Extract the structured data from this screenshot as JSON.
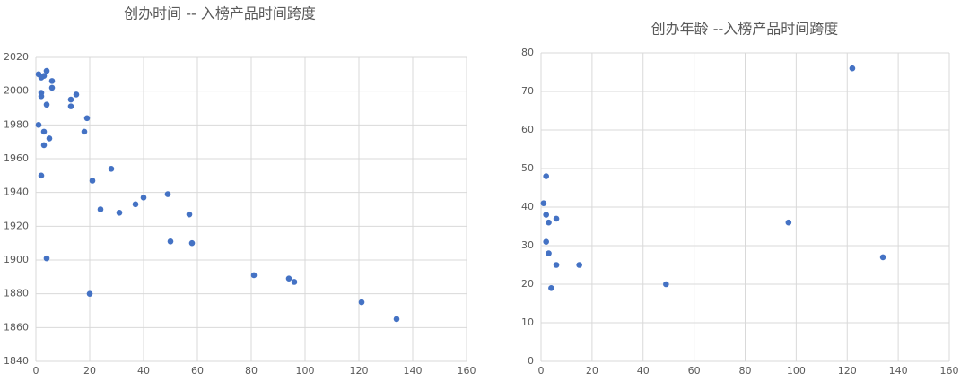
{
  "chart_data": [
    {
      "type": "scatter",
      "title": "创办时间 -- 入榜产品时间跨度",
      "color": "#4472c4",
      "grid": true,
      "xlim": [
        0,
        160
      ],
      "xticks": [
        0,
        20,
        40,
        60,
        80,
        100,
        120,
        140,
        160
      ],
      "ylim": [
        1840,
        2020
      ],
      "yticks": [
        1840,
        1860,
        1880,
        1900,
        1920,
        1940,
        1960,
        1980,
        2000,
        2020
      ],
      "x": [
        1,
        4,
        2,
        3,
        6,
        6,
        2,
        2,
        4,
        15,
        13,
        13,
        19,
        1,
        3,
        18,
        5,
        3,
        28,
        2,
        21,
        49,
        40,
        37,
        24,
        31,
        57,
        50,
        58,
        4,
        81,
        94,
        96,
        20,
        121,
        134
      ],
      "values": [
        2010,
        2012,
        2008,
        2009,
        2006,
        2002,
        1999,
        1997,
        1992,
        1998,
        1995,
        1991,
        1984,
        1980,
        1976,
        1976,
        1972,
        1968,
        1954,
        1950,
        1947,
        1939,
        1937,
        1933,
        1930,
        1928,
        1927,
        1911,
        1910,
        1901,
        1891,
        1889,
        1887,
        1880,
        1875,
        1865
      ]
    },
    {
      "type": "scatter",
      "title": "创办年龄 --入榜产品时间跨度",
      "color": "#4472c4",
      "grid": true,
      "xlim": [
        0,
        160
      ],
      "xticks": [
        0,
        20,
        40,
        60,
        80,
        100,
        120,
        140,
        160
      ],
      "ylim": [
        0,
        80
      ],
      "yticks": [
        0,
        10,
        20,
        30,
        40,
        50,
        60,
        70,
        80
      ],
      "x": [
        1,
        2,
        2,
        6,
        3,
        2,
        3,
        6,
        15,
        4,
        49,
        97,
        122,
        134
      ],
      "values": [
        41,
        48,
        38,
        37,
        36,
        31,
        28,
        25,
        25,
        19,
        20,
        36,
        76,
        27
      ]
    }
  ]
}
